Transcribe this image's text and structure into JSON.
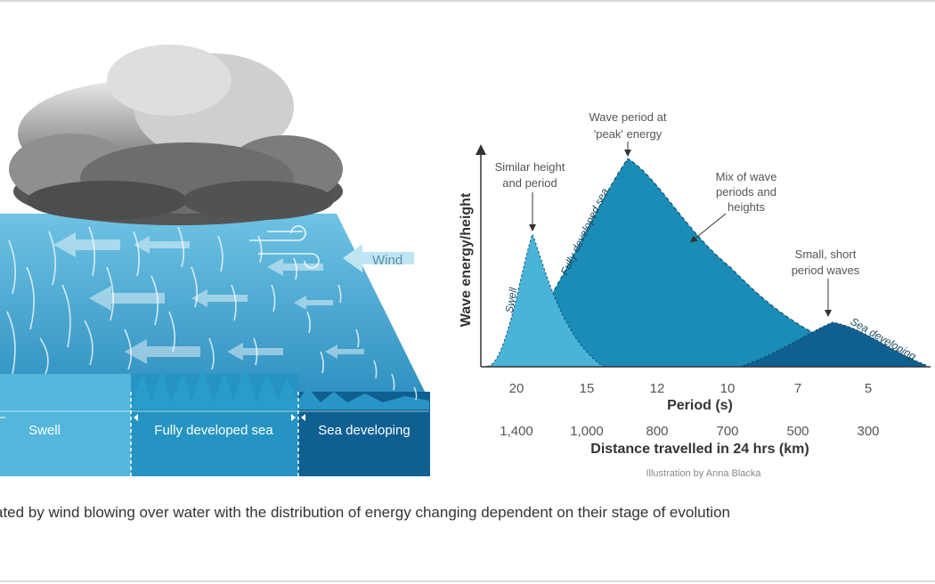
{
  "illustration": {
    "wind_label": "Wind",
    "zones": [
      "Swell",
      "Fully developed sea",
      "Sea developing"
    ],
    "colors": {
      "swell": "#3fa9cf",
      "fully_developed": "#1b8cb8",
      "developing": "#0f5f91",
      "sky_cloud": "#8a8a8a"
    }
  },
  "graph": {
    "y_axis_label": "Wave energy/height",
    "x_axis_label": "Period (s)",
    "x_ticks": [
      "20",
      "15",
      "12",
      "10",
      "7",
      "5"
    ],
    "distance_ticks": [
      "1,400",
      "1,000",
      "800",
      "700",
      "500",
      "300"
    ],
    "distance_label": "Distance travelled in 24 hrs (km)",
    "curve_labels": {
      "swell": "Swell",
      "fully_developed": "Fully developed sea",
      "developing": "Sea developing"
    },
    "annotations": {
      "similar": [
        "Similar height",
        "and period"
      ],
      "peak": [
        "Wave period at",
        "'peak' energy"
      ],
      "mix": [
        "Mix of wave",
        "periods and",
        "heights"
      ],
      "small": [
        "Small, short",
        "period waves"
      ]
    },
    "credit": "Illustration by Anna Blacka"
  },
  "caption": "ated by wind blowing over water with the distribution of energy changing dependent on their stage of evolution"
}
